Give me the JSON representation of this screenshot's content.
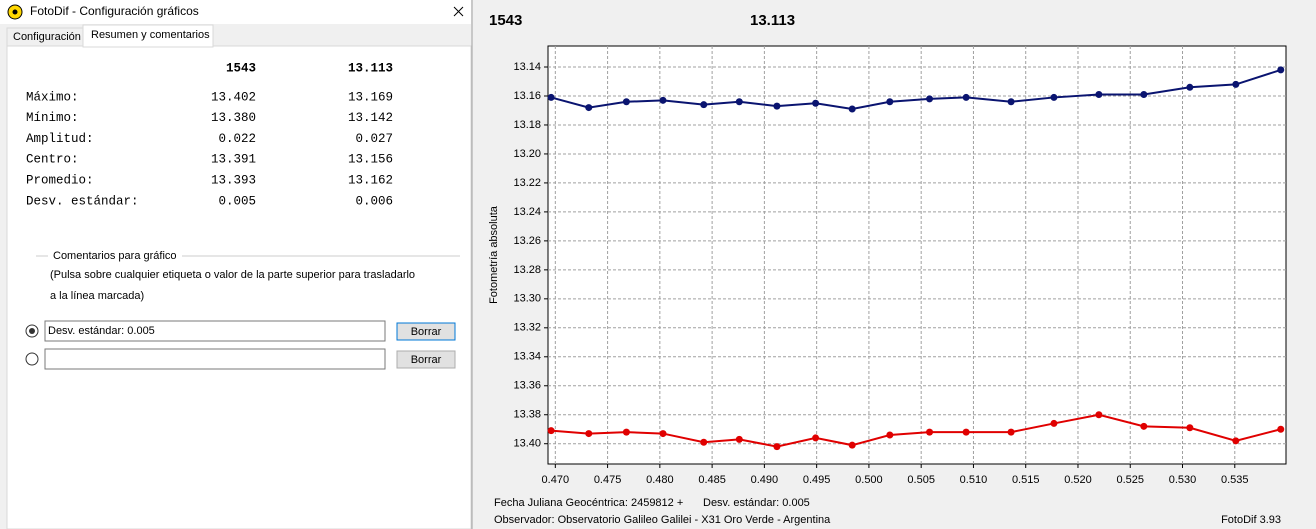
{
  "window": {
    "title": "FotoDif - Configuración gráficos",
    "tabs": [
      "Configuración",
      "Resumen y comentarios"
    ],
    "summary": {
      "columns": [
        "1543",
        "13.113"
      ],
      "rows": [
        {
          "label": "Máximo:",
          "values": [
            "13.402",
            "13.169"
          ]
        },
        {
          "label": "Mínimo:",
          "values": [
            "13.380",
            "13.142"
          ]
        },
        {
          "label": "Amplitud:",
          "values": [
            "0.022",
            "0.027"
          ]
        },
        {
          "label": "Centro:",
          "values": [
            "13.391",
            "13.156"
          ]
        },
        {
          "label": "Promedio:",
          "values": [
            "13.393",
            "13.162"
          ]
        },
        {
          "label": "Desv. estándar:",
          "values": [
            "0.005",
            "0.006"
          ]
        }
      ]
    },
    "comments": {
      "title": "Comentarios para gráfico",
      "hint_lines": [
        "(Pulsa sobre cualquier etiqueta o valor de la parte superior para trasladarlo",
        "a la línea marcada)"
      ],
      "entries": [
        {
          "text": "Desv. estándar: 0.005",
          "selected": true,
          "button": "Borrar"
        },
        {
          "selected": false,
          "button": "Borrar"
        }
      ]
    }
  },
  "chart_data": {
    "type": "line",
    "y_label": "Fotometría absoluta",
    "x": [
      0.4696,
      0.4732,
      0.4768,
      0.4803,
      0.4842,
      0.4876,
      0.4912,
      0.4949,
      0.4984,
      0.502,
      0.5058,
      0.5093,
      0.5136,
      0.5177,
      0.522,
      0.5263,
      0.5307,
      0.5351,
      0.5394
    ],
    "series": [
      {
        "name": "1543",
        "color": "#e00000",
        "values": [
          13.391,
          13.393,
          13.392,
          13.393,
          13.399,
          13.397,
          13.402,
          13.396,
          13.401,
          13.394,
          13.392,
          13.392,
          13.392,
          13.386,
          13.38,
          13.388,
          13.389,
          13.398,
          13.39
        ]
      },
      {
        "name": "13.113",
        "color": "#0a1470",
        "values": [
          13.161,
          13.168,
          13.164,
          13.163,
          13.166,
          13.164,
          13.167,
          13.165,
          13.169,
          13.164,
          13.162,
          13.161,
          13.164,
          13.161,
          13.159,
          13.159,
          13.154,
          13.152,
          13.142
        ]
      }
    ],
    "xlim": [
      0.4693,
      0.5399
    ],
    "ylim": [
      13.414,
      13.1255
    ],
    "xticks": [
      {
        "value": 0.47,
        "label": "0.470"
      },
      {
        "value": 0.475,
        "label": "0.475"
      },
      {
        "value": 0.48,
        "label": "0.480"
      },
      {
        "value": 0.485,
        "label": "0.485"
      },
      {
        "value": 0.49,
        "label": "0.490"
      },
      {
        "value": 0.495,
        "label": "0.495"
      },
      {
        "value": 0.5,
        "label": "0.500"
      },
      {
        "value": 0.505,
        "label": "0.505"
      },
      {
        "value": 0.51,
        "label": "0.510"
      },
      {
        "value": 0.515,
        "label": "0.515"
      },
      {
        "value": 0.52,
        "label": "0.520"
      },
      {
        "value": 0.525,
        "label": "0.525"
      },
      {
        "value": 0.53,
        "label": "0.530"
      },
      {
        "value": 0.535,
        "label": "0.535"
      }
    ],
    "yticks": [
      13.14,
      13.16,
      13.18,
      {
        "value": 13.2,
        "label": "13.20"
      },
      13.22,
      13.24,
      13.26,
      13.28,
      {
        "value": 13.3,
        "label": "13.30"
      },
      13.32,
      13.34,
      13.36,
      13.38,
      {
        "value": 13.4,
        "label": "13.40"
      }
    ],
    "grid": true,
    "footer": {
      "date_label": "Fecha Juliana Geocéntrica: 2459812 +",
      "note": "Desv. estándar: 0.005",
      "observer": "Observador: Observatorio Galileo Galilei - X31 Oro Verde - Argentina",
      "version": "FotoDif 3.93"
    }
  }
}
